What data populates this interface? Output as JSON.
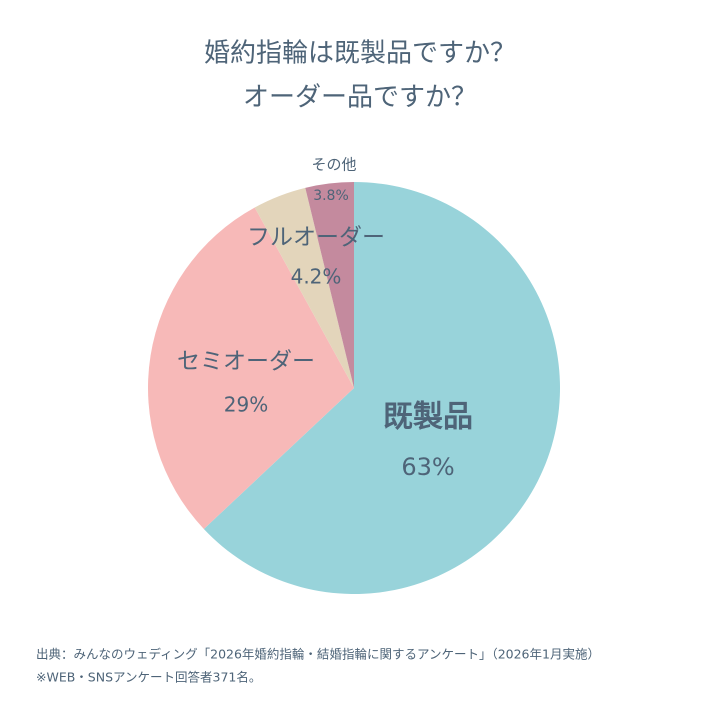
{
  "chart_data": {
    "type": "pie",
    "title": [
      "婚約指輪は既製品ですか？",
      "オーダー品ですか？"
    ],
    "categories": [
      "既製品",
      "セミオーダー",
      "フルオーダー",
      "その他"
    ],
    "values": [
      63,
      29,
      4.2,
      3.8
    ],
    "value_labels": [
      "63%",
      "29%",
      "4.2%",
      "3.8%"
    ],
    "colors": [
      "#98d3da",
      "#f7b9b8",
      "#e3d5bb",
      "#c48a9e"
    ],
    "notes": [
      "出典：みんなのウェディング「2026年婚約指輪・結婚指輪に関するアンケート」（2026年1月実施）",
      "※WEB・SNSアンケート回答者371名。"
    ]
  }
}
